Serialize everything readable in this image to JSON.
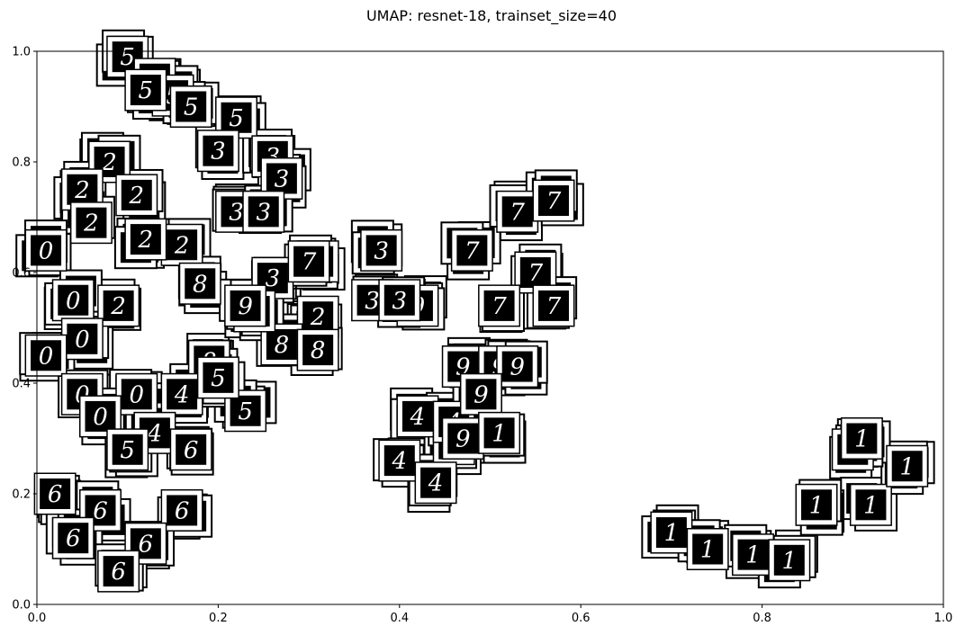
{
  "chart_data": {
    "type": "scatter",
    "title": "UMAP: resnet-18, trainset_size=40",
    "xlabel": "",
    "ylabel": "",
    "xlim": [
      0.0,
      1.0
    ],
    "ylim": [
      0.0,
      1.0
    ],
    "x_ticks": [
      "0.0",
      "0.2",
      "0.4",
      "0.6",
      "0.8",
      "1.0"
    ],
    "y_ticks": [
      "0.0",
      "0.2",
      "0.4",
      "0.6",
      "0.8",
      "1.0"
    ],
    "grid": false,
    "marker": "MNIST digit thumbnail image (white glyph on black tile with white frame)",
    "clusters": [
      {
        "digit": "5",
        "x": [
          0.1,
          0.13,
          0.15,
          0.22,
          0.12,
          0.17
        ],
        "y": [
          0.99,
          0.95,
          0.92,
          0.88,
          0.93,
          0.9
        ]
      },
      {
        "digit": "3",
        "x": [
          0.2,
          0.26,
          0.27,
          0.22,
          0.25,
          0.26,
          0.37,
          0.31
        ],
        "y": [
          0.82,
          0.81,
          0.77,
          0.71,
          0.71,
          0.59,
          0.55,
          0.62
        ]
      },
      {
        "digit": "2",
        "x": [
          0.08,
          0.05,
          0.11,
          0.06,
          0.16,
          0.12,
          0.31,
          0.09
        ],
        "y": [
          0.8,
          0.75,
          0.74,
          0.69,
          0.65,
          0.66,
          0.52,
          0.54
        ]
      },
      {
        "digit": "0",
        "x": [
          0.01,
          0.04,
          0.05,
          0.01,
          0.05,
          0.11,
          0.07
        ],
        "y": [
          0.64,
          0.55,
          0.48,
          0.45,
          0.38,
          0.38,
          0.34
        ]
      },
      {
        "digit": "8",
        "x": [
          0.18,
          0.19,
          0.27,
          0.31,
          0.24
        ],
        "y": [
          0.58,
          0.44,
          0.47,
          0.46,
          0.53
        ]
      },
      {
        "digit": "4",
        "x": [
          0.16,
          0.13,
          0.42,
          0.4,
          0.46,
          0.44,
          0.46
        ],
        "y": [
          0.38,
          0.31,
          0.34,
          0.26,
          0.29,
          0.22,
          0.33
        ]
      },
      {
        "digit": "5",
        "x": [
          0.23,
          0.2,
          0.1
        ],
        "y": [
          0.35,
          0.41,
          0.28
        ]
      },
      {
        "digit": "6",
        "x": [
          0.17,
          0.02,
          0.07,
          0.16,
          0.04,
          0.12,
          0.09
        ],
        "y": [
          0.28,
          0.2,
          0.17,
          0.17,
          0.12,
          0.11,
          0.06
        ]
      },
      {
        "digit": "7",
        "x": [
          0.3,
          0.48,
          0.53,
          0.57,
          0.55,
          0.51,
          0.57
        ],
        "y": [
          0.62,
          0.64,
          0.71,
          0.73,
          0.6,
          0.54,
          0.54
        ]
      },
      {
        "digit": "9",
        "x": [
          0.23,
          0.42,
          0.47,
          0.51,
          0.47,
          0.53,
          0.49
        ],
        "y": [
          0.54,
          0.54,
          0.43,
          0.43,
          0.3,
          0.43,
          0.38
        ]
      },
      {
        "digit": "3",
        "x": [
          0.38,
          0.4
        ],
        "y": [
          0.64,
          0.55
        ]
      },
      {
        "digit": "1",
        "x": [
          0.51,
          0.7,
          0.74,
          0.79,
          0.83,
          0.9,
          0.92,
          0.96,
          0.91,
          0.86
        ],
        "y": [
          0.31,
          0.13,
          0.1,
          0.09,
          0.08,
          0.28,
          0.18,
          0.25,
          0.3,
          0.18
        ]
      }
    ]
  }
}
